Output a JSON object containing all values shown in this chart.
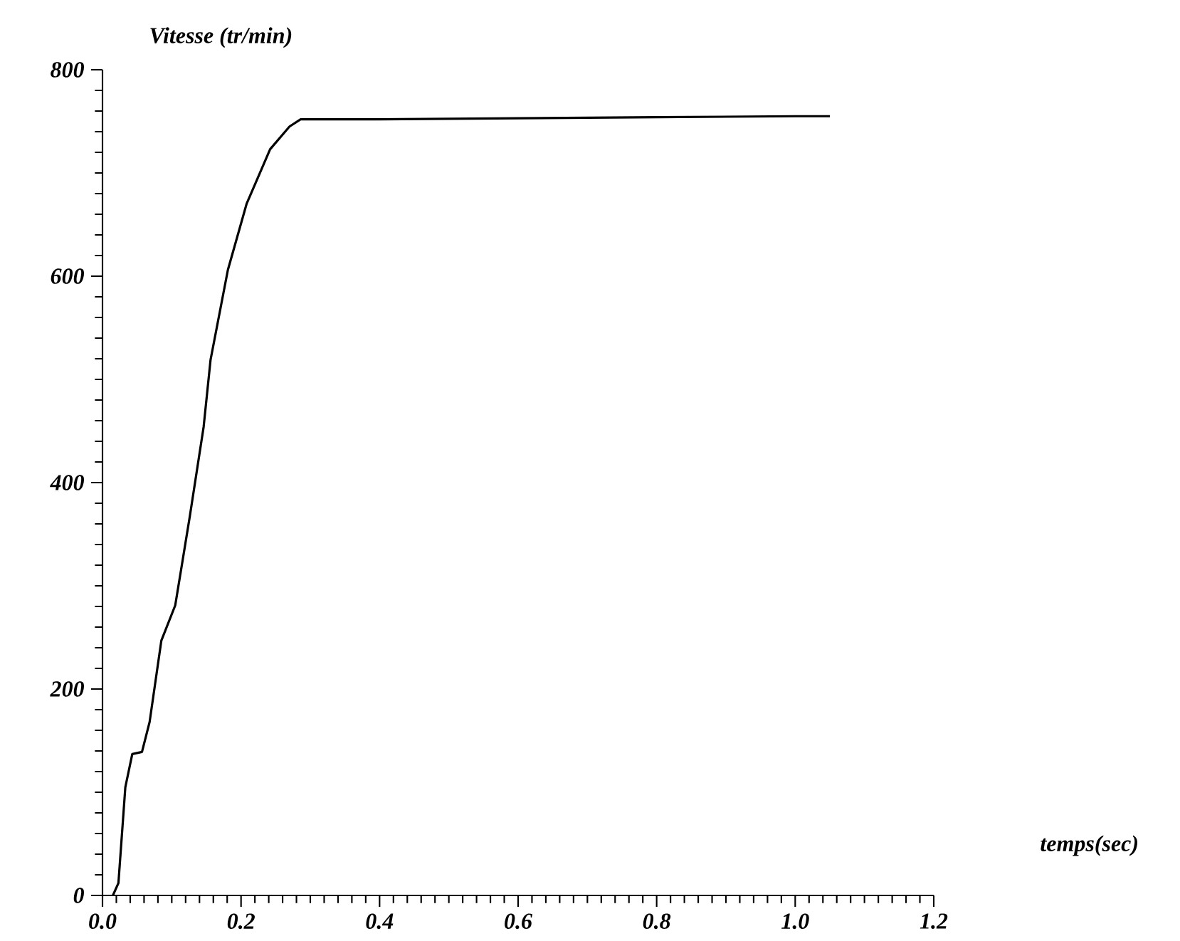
{
  "chart_data": {
    "type": "line",
    "xlabel": "temps(sec)",
    "ylabel": "Vitesse (tr/min)",
    "x": [
      0.015,
      0.023,
      0.033,
      0.043,
      0.057,
      0.068,
      0.085,
      0.105,
      0.126,
      0.146,
      0.156,
      0.181,
      0.208,
      0.242,
      0.27,
      0.286,
      0.32,
      0.4,
      0.6,
      0.8,
      1.0,
      1.05
    ],
    "values": [
      0,
      12,
      105,
      137,
      139,
      168,
      247,
      281,
      367,
      454,
      519,
      606,
      670,
      723,
      745,
      752,
      752,
      752,
      753,
      754,
      755,
      755
    ],
    "color": "#000000",
    "line_style": "solid",
    "marker": "none",
    "xlim": [
      0,
      1.2
    ],
    "ylim": [
      0,
      800
    ],
    "xticks": [
      {
        "value": 0,
        "label": "0.0"
      },
      0.2,
      0.4,
      0.6,
      0.8,
      {
        "value": 1,
        "label": "1.0"
      },
      1.2
    ],
    "yticks": [
      0,
      200,
      400,
      600,
      800
    ]
  }
}
